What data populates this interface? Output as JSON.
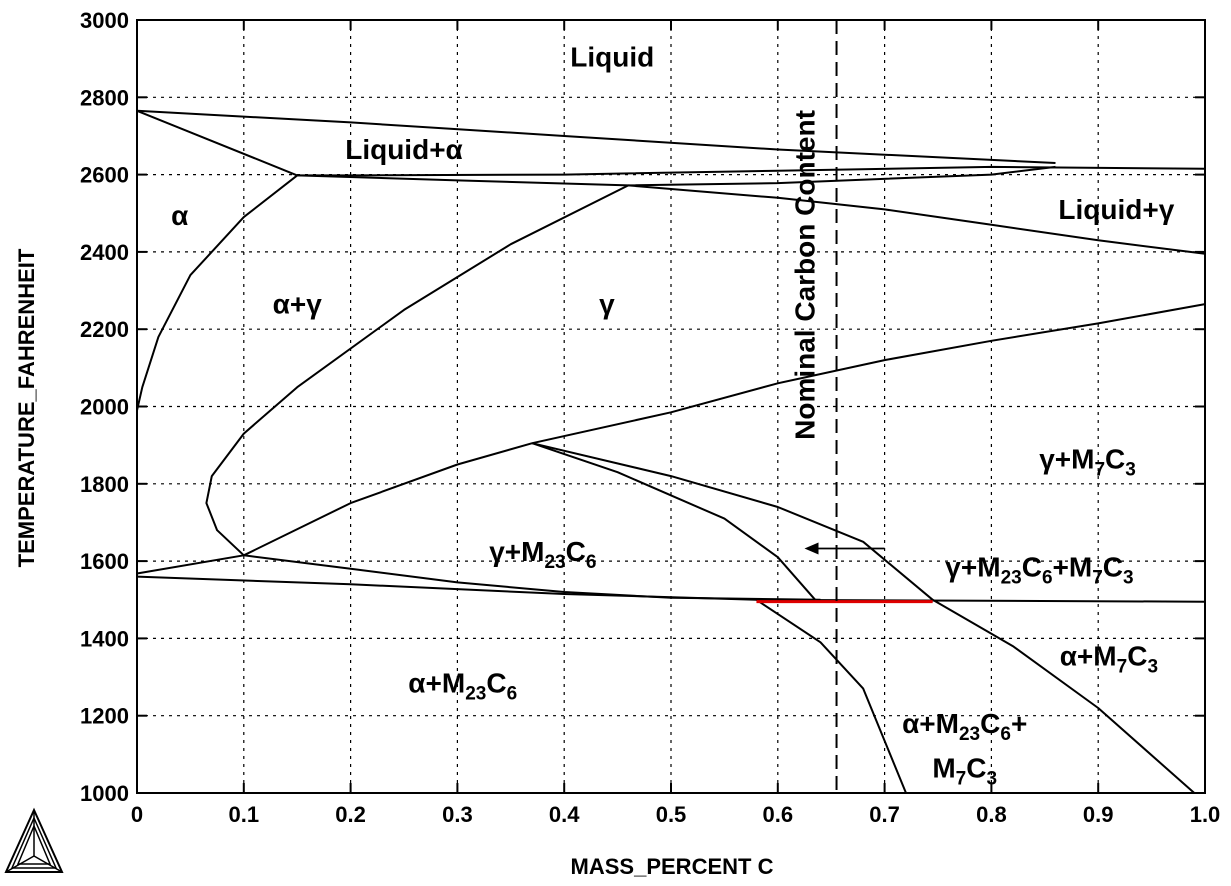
{
  "chart_data": {
    "type": "line",
    "subtype": "phase-diagram",
    "xlabel": "MASS_PERCENT C",
    "ylabel": "TEMPERATURE_FAHRENHEIT",
    "xlim": [
      0,
      1.0
    ],
    "ylim": [
      1000,
      3000
    ],
    "x_ticks": [
      "0",
      "0.1",
      "0.2",
      "0.3",
      "0.4",
      "0.5",
      "0.6",
      "0.7",
      "0.8",
      "0.9",
      "1.0"
    ],
    "y_ticks": [
      "1000",
      "1200",
      "1400",
      "1600",
      "1800",
      "2000",
      "2200",
      "2400",
      "2600",
      "2800",
      "3000"
    ],
    "grid": true,
    "grid_style": "dotted",
    "vertical_marker": {
      "x": 0.655,
      "label": "Nominal Carbon Content",
      "style": "dashed"
    },
    "highlight": {
      "x": [
        0.58,
        0.745
      ],
      "y": 1495,
      "color": "#e00000"
    },
    "arrow": {
      "from": [
        0.7,
        1630
      ],
      "to": [
        0.625,
        1630
      ]
    },
    "phase_boundaries": [
      {
        "name": "liquidus-top",
        "points": [
          [
            0,
            2765
          ],
          [
            0.2,
            2735
          ],
          [
            0.4,
            2700
          ],
          [
            0.6,
            2665
          ],
          [
            0.8,
            2638
          ],
          [
            0.86,
            2630
          ]
        ]
      },
      {
        "name": "liquid-alpha-liquidus",
        "points": [
          [
            0,
            2765
          ],
          [
            0.15,
            2598
          ]
        ]
      },
      {
        "name": "peritectic-1",
        "points": [
          [
            0.15,
            2598
          ],
          [
            0.2,
            2598
          ],
          [
            0.4,
            2600
          ],
          [
            0.6,
            2610
          ],
          [
            0.8,
            2620
          ],
          [
            1.0,
            2615
          ]
        ]
      },
      {
        "name": "peritectic-2",
        "points": [
          [
            0.15,
            2598
          ],
          [
            0.3,
            2585
          ],
          [
            0.46,
            2572
          ],
          [
            0.6,
            2578
          ],
          [
            0.8,
            2600
          ],
          [
            0.86,
            2620
          ]
        ]
      },
      {
        "name": "gamma-solidus",
        "points": [
          [
            0.46,
            2572
          ],
          [
            0.6,
            2540
          ],
          [
            0.7,
            2510
          ],
          [
            0.8,
            2470
          ],
          [
            0.9,
            2430
          ],
          [
            1.0,
            2395
          ]
        ]
      },
      {
        "name": "alpha-alpha-gamma",
        "points": [
          [
            0.15,
            2598
          ],
          [
            0.1,
            2490
          ],
          [
            0.05,
            2340
          ],
          [
            0.02,
            2180
          ],
          [
            0.005,
            2050
          ],
          [
            0.0,
            1990
          ]
        ]
      },
      {
        "name": "alpha-gamma-loop",
        "points": [
          [
            0.46,
            2572
          ],
          [
            0.35,
            2420
          ],
          [
            0.25,
            2250
          ],
          [
            0.15,
            2050
          ],
          [
            0.1,
            1930
          ],
          [
            0.07,
            1820
          ],
          [
            0.065,
            1750
          ],
          [
            0.075,
            1680
          ],
          [
            0.1,
            1615
          ]
        ]
      },
      {
        "name": "acm-m23c6",
        "points": [
          [
            0.1,
            1615
          ],
          [
            0.2,
            1750
          ],
          [
            0.3,
            1850
          ],
          [
            0.37,
            1905
          ]
        ]
      },
      {
        "name": "acm-m7c3",
        "points": [
          [
            0.37,
            1905
          ],
          [
            0.5,
            1985
          ],
          [
            0.6,
            2060
          ],
          [
            0.7,
            2120
          ],
          [
            0.8,
            2170
          ],
          [
            0.9,
            2215
          ],
          [
            1.0,
            2265
          ]
        ]
      },
      {
        "name": "m23c6-boundary-a",
        "points": [
          [
            0.37,
            1905
          ],
          [
            0.45,
            1830
          ],
          [
            0.55,
            1710
          ],
          [
            0.6,
            1610
          ],
          [
            0.635,
            1500
          ]
        ]
      },
      {
        "name": "m23c6-boundary-b",
        "points": [
          [
            0.37,
            1905
          ],
          [
            0.5,
            1820
          ],
          [
            0.6,
            1740
          ],
          [
            0.68,
            1650
          ],
          [
            0.745,
            1500
          ]
        ]
      },
      {
        "name": "eutectoid-region-upper",
        "points": [
          [
            0.0,
            1568
          ],
          [
            0.1,
            1615
          ],
          [
            0.2,
            1580
          ],
          [
            0.3,
            1545
          ],
          [
            0.4,
            1520
          ],
          [
            0.5,
            1505
          ],
          [
            0.64,
            1500
          ]
        ]
      },
      {
        "name": "eutectoid-line",
        "points": [
          [
            0.0,
            1560
          ],
          [
            0.2,
            1540
          ],
          [
            0.4,
            1515
          ],
          [
            0.58,
            1500
          ],
          [
            1.0,
            1495
          ]
        ]
      },
      {
        "name": "alpha-m23c6-m7c3-a",
        "points": [
          [
            0.58,
            1500
          ],
          [
            0.64,
            1390
          ],
          [
            0.68,
            1270
          ],
          [
            0.72,
            1000
          ]
        ]
      },
      {
        "name": "alpha-m7c3-boundary",
        "points": [
          [
            0.745,
            1500
          ],
          [
            0.82,
            1380
          ],
          [
            0.9,
            1220
          ],
          [
            0.99,
            1000
          ]
        ]
      }
    ],
    "regions": [
      {
        "label": "Liquid",
        "x": 0.445,
        "y": 2880
      },
      {
        "label": "Liquid+α",
        "x": 0.25,
        "y": 2640
      },
      {
        "label": "Liquid+γ",
        "x": 0.917,
        "y": 2485
      },
      {
        "label": "α",
        "x": 0.04,
        "y": 2470
      },
      {
        "label": "α+γ",
        "x": 0.15,
        "y": 2240
      },
      {
        "label": "γ",
        "x": 0.44,
        "y": 2240
      },
      {
        "label": "γ+M7C3",
        "x": 0.89,
        "y": 1840
      },
      {
        "label": "γ+M23C6",
        "x": 0.38,
        "y": 1600
      },
      {
        "label": "γ+M23C6+M7C3",
        "x": 0.845,
        "y": 1560
      },
      {
        "label": "α+M7C3",
        "x": 0.91,
        "y": 1330
      },
      {
        "label": "α+M23C6",
        "x": 0.305,
        "y": 1260
      },
      {
        "label": "α+M23C6+",
        "x": 0.775,
        "y": 1155
      },
      {
        "label": "M7C3",
        "x": 0.775,
        "y": 1040
      }
    ]
  }
}
